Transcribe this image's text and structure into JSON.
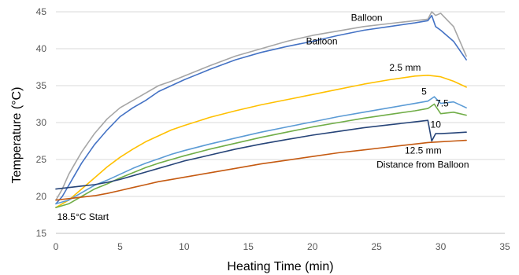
{
  "chart_data": {
    "type": "line",
    "title": "",
    "xlabel": "Heating Time (min)",
    "ylabel": "Temperature (°C)",
    "xlim": [
      0,
      35
    ],
    "ylim": [
      15,
      45
    ],
    "xticks": [
      0,
      5,
      10,
      15,
      20,
      25,
      30,
      35
    ],
    "yticks": [
      15,
      20,
      25,
      30,
      35,
      40,
      45
    ],
    "grid": "horizontal",
    "legend": "none",
    "series": [
      {
        "name": "Balloon",
        "color": "#a6a6a6",
        "x": [
          0,
          0.5,
          1,
          1.5,
          2,
          3,
          4,
          5,
          6,
          7,
          8,
          9,
          10,
          12,
          14,
          16,
          18,
          20,
          22,
          24,
          26,
          28,
          29,
          29.3,
          29.6,
          30,
          31,
          32
        ],
        "y": [
          19.5,
          21,
          23,
          24.5,
          26,
          28.5,
          30.5,
          32,
          33,
          34,
          35,
          35.6,
          36.3,
          37.7,
          39,
          40,
          41,
          41.8,
          42.4,
          43,
          43.4,
          43.8,
          44,
          45,
          44.5,
          44.8,
          43,
          39
        ]
      },
      {
        "name": "Balloon",
        "color": "#4472c4",
        "x": [
          0,
          0.5,
          1,
          1.5,
          2,
          3,
          4,
          5,
          6,
          7,
          8,
          9,
          10,
          12,
          14,
          16,
          18,
          20,
          22,
          24,
          26,
          28,
          29,
          29.3,
          29.6,
          30,
          31,
          32
        ],
        "y": [
          19,
          20,
          21.5,
          23,
          24.5,
          27,
          29,
          30.8,
          32,
          33,
          34.2,
          35,
          35.8,
          37.2,
          38.5,
          39.5,
          40.3,
          41,
          41.8,
          42.5,
          43,
          43.5,
          43.8,
          44.5,
          43,
          42.5,
          41,
          38.5
        ]
      },
      {
        "name": "2.5 mm",
        "color": "#ffc000",
        "x": [
          0,
          1,
          2,
          3,
          4,
          5,
          6,
          7,
          8,
          9,
          10,
          12,
          14,
          16,
          18,
          20,
          22,
          24,
          26,
          28,
          29,
          30,
          31,
          32
        ],
        "y": [
          18.5,
          19.5,
          21,
          22.5,
          24,
          25.3,
          26.4,
          27.4,
          28.2,
          29,
          29.6,
          30.7,
          31.6,
          32.4,
          33.1,
          33.8,
          34.5,
          35.2,
          35.8,
          36.3,
          36.4,
          36.2,
          35.6,
          34.8
        ]
      },
      {
        "name": "5",
        "color": "#5b9bd5",
        "x": [
          0,
          1,
          2,
          3,
          4,
          5,
          6,
          7,
          8,
          9,
          10,
          12,
          14,
          16,
          18,
          20,
          22,
          24,
          26,
          28,
          29,
          29.5,
          30,
          31,
          32
        ],
        "y": [
          19,
          19.5,
          20.5,
          21.5,
          22.2,
          23,
          23.8,
          24.5,
          25.1,
          25.7,
          26.2,
          27.1,
          27.9,
          28.7,
          29.4,
          30.1,
          30.8,
          31.4,
          32,
          32.6,
          32.9,
          33.5,
          32.6,
          32.8,
          32
        ]
      },
      {
        "name": "7.5",
        "color": "#70ad47",
        "x": [
          0,
          1,
          2,
          3,
          4,
          5,
          6,
          7,
          8,
          9,
          10,
          12,
          14,
          16,
          18,
          20,
          22,
          24,
          26,
          28,
          29,
          29.5,
          30,
          31,
          32
        ],
        "y": [
          18.5,
          19,
          20,
          21,
          21.7,
          22.5,
          23.2,
          23.9,
          24.5,
          25,
          25.5,
          26.4,
          27.2,
          28,
          28.7,
          29.4,
          30,
          30.6,
          31.1,
          31.6,
          31.9,
          32.5,
          31.2,
          31.4,
          31
        ]
      },
      {
        "name": "10",
        "color": "#264478",
        "x": [
          0,
          1,
          2,
          3,
          4,
          5,
          6,
          7,
          8,
          9,
          10,
          12,
          14,
          16,
          18,
          20,
          22,
          24,
          26,
          28,
          29,
          29.3,
          29.6,
          30,
          31,
          32
        ],
        "y": [
          21,
          21.2,
          21.4,
          21.6,
          21.9,
          22.3,
          22.8,
          23.3,
          23.8,
          24.3,
          24.8,
          25.6,
          26.4,
          27.1,
          27.7,
          28.3,
          28.8,
          29.3,
          29.7,
          30.1,
          30.3,
          27.5,
          28.5,
          28.5,
          28.6,
          28.7
        ]
      },
      {
        "name": "12.5 mm",
        "color": "#c55a11",
        "x": [
          0,
          1,
          2,
          3,
          4,
          5,
          6,
          7,
          8,
          9,
          10,
          12,
          14,
          16,
          18,
          20,
          22,
          24,
          26,
          28,
          29,
          30,
          31,
          32
        ],
        "y": [
          19.5,
          19.7,
          19.9,
          20.1,
          20.4,
          20.8,
          21.2,
          21.6,
          22,
          22.3,
          22.6,
          23.2,
          23.8,
          24.4,
          24.9,
          25.4,
          25.9,
          26.3,
          26.7,
          27.1,
          27.3,
          27.4,
          27.5,
          27.6
        ]
      }
    ],
    "annotations": [
      {
        "text": "Balloon",
        "x": 23,
        "y": 43.8
      },
      {
        "text": "Balloon",
        "x": 19.5,
        "y": 40.6
      },
      {
        "text": "2.5 mm",
        "x": 26,
        "y": 37
      },
      {
        "text": "5",
        "x": 28.5,
        "y": 33.8
      },
      {
        "text": "7.5",
        "x": 29.6,
        "y": 32.2
      },
      {
        "text": "10",
        "x": 29.2,
        "y": 29.3
      },
      {
        "text": "12.5 mm",
        "x": 27.2,
        "y": 25.8
      },
      {
        "text": "Distance from Balloon",
        "x": 25,
        "y": 23.9
      },
      {
        "text": "18.5°C Start",
        "x": 0.1,
        "y": 16.8
      }
    ]
  }
}
